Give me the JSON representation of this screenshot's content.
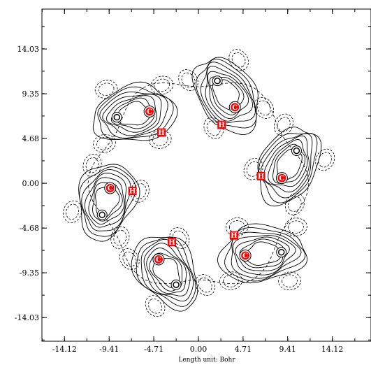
{
  "chart_data": {
    "type": "contour",
    "title": "",
    "xlabel": "Length unit: Bohr",
    "ylabel": "",
    "xlim": [
      -16.5,
      18.2
    ],
    "ylim": [
      -16.5,
      18.2
    ],
    "x_ticks": [
      "-14.12",
      "-9.41",
      "-4.71",
      "0.00",
      "4.71",
      "9.41",
      "14.12"
    ],
    "y_ticks": [
      "14.03",
      "9.35",
      "4.68",
      "0.00",
      "-4.68",
      "-9.35",
      "-14.03"
    ],
    "x_tick_values": [
      -14.12,
      -9.41,
      -4.71,
      0.0,
      4.71,
      9.41,
      14.12
    ],
    "y_tick_values": [
      14.03,
      9.35,
      4.68,
      0.0,
      -4.68,
      -9.35,
      -14.03
    ],
    "atoms": [
      {
        "label": "C",
        "element": "C",
        "x": -5.15,
        "y": 7.5,
        "bonded": true
      },
      {
        "label": "H",
        "element": "H",
        "x": -3.9,
        "y": 5.3,
        "bonded": false
      },
      {
        "label": "C",
        "element": "C",
        "x": 3.85,
        "y": 7.95,
        "bonded": true
      },
      {
        "label": "H",
        "element": "H",
        "x": 2.45,
        "y": 6.1,
        "bonded": false
      },
      {
        "label": "C",
        "element": "C",
        "x": 8.8,
        "y": 0.55,
        "bonded": true
      },
      {
        "label": "H",
        "element": "H",
        "x": 6.6,
        "y": 0.75,
        "bonded": false
      },
      {
        "label": "C",
        "element": "C",
        "x": 4.95,
        "y": -7.55,
        "bonded": true
      },
      {
        "label": "H",
        "element": "H",
        "x": 3.75,
        "y": -5.45,
        "bonded": false
      },
      {
        "label": "C",
        "element": "C",
        "x": -4.2,
        "y": -7.95,
        "bonded": true
      },
      {
        "label": "H",
        "element": "H",
        "x": -2.8,
        "y": -6.15,
        "bonded": false
      },
      {
        "label": "C",
        "element": "C",
        "x": -9.3,
        "y": -0.5,
        "bonded": true
      },
      {
        "label": "H",
        "element": "H",
        "x": -6.95,
        "y": -0.8,
        "bonded": false
      }
    ],
    "partner_atoms": [
      {
        "x": -8.6,
        "y": 6.9
      },
      {
        "x": 2.0,
        "y": 10.7
      },
      {
        "x": 10.35,
        "y": 3.4
      },
      {
        "x": 8.75,
        "y": -7.2
      },
      {
        "x": -2.35,
        "y": -10.6
      },
      {
        "x": -10.15,
        "y": -3.3
      }
    ],
    "colors": {
      "atom_marker": "#ff0000",
      "solid_contour": "#000000",
      "dashed_contour": "#000000"
    }
  }
}
